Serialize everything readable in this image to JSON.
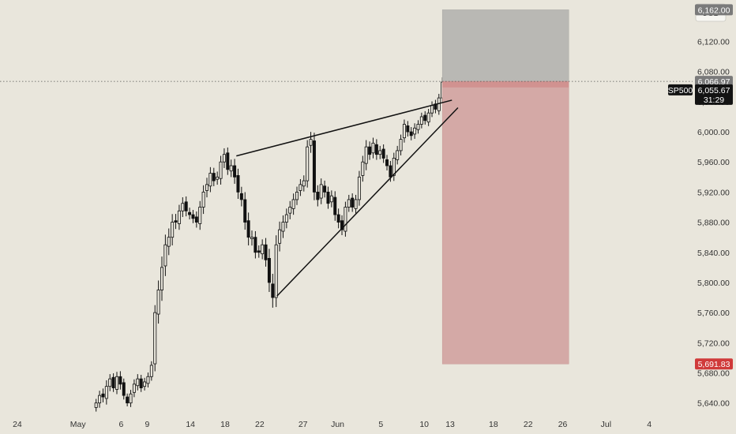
{
  "currency": "USD",
  "chart_data": {
    "type": "candlestick",
    "symbol": "SP500",
    "yaxis": {
      "ticks": [
        "5,640.00",
        "5,680.00",
        "5,720.00",
        "5,760.00",
        "5,800.00",
        "5,840.00",
        "5,880.00",
        "5,920.00",
        "5,960.00",
        "6,000.00",
        "6,040.00",
        "6,080.00",
        "6,120.00"
      ],
      "tick_values": [
        5640,
        5680,
        5720,
        5760,
        5800,
        5840,
        5880,
        5920,
        5960,
        6000,
        6040,
        6080,
        6120
      ],
      "range": [
        5625,
        6175
      ]
    },
    "xaxis": {
      "labels": [
        "24",
        "May",
        "6",
        "9",
        "14",
        "18",
        "22",
        "27",
        "Jun",
        "5",
        "10",
        "13",
        "18",
        "22",
        "26",
        "Jul",
        "4"
      ],
      "label_positions": [
        0,
        7,
        12,
        15,
        20,
        24,
        28,
        33,
        37,
        42,
        47,
        50,
        55,
        59,
        63,
        68,
        73
      ],
      "range": [
        -2,
        78
      ]
    },
    "price_badges": {
      "target": "6,162.00",
      "entry": "6,066.97",
      "current_price": "6,055.67",
      "countdown": "31:29",
      "stop": "5,691.83"
    },
    "levels": {
      "target": 6162.0,
      "entry": 6066.97,
      "current": 6055.67,
      "stop": 5691.83
    },
    "position_zone": {
      "x_start": 49.1,
      "x_end": 63.7
    },
    "wedge_lines": [
      {
        "x1": 25.3,
        "y1": 5968,
        "x2": 50.2,
        "y2": 6042
      },
      {
        "x1": 30.0,
        "y1": 5782,
        "x2": 50.9,
        "y2": 6032
      }
    ],
    "closes": [
      5640,
      5650,
      5648,
      5662,
      5672,
      5660,
      5675,
      5665,
      5650,
      5640,
      5652,
      5665,
      5672,
      5660,
      5668,
      5675,
      5690,
      5760,
      5790,
      5820,
      5850,
      5860,
      5880,
      5880,
      5895,
      5905,
      5895,
      5890,
      5885,
      5880,
      5900,
      5920,
      5930,
      5945,
      5935,
      5940,
      5960,
      5970,
      5950,
      5955,
      5940,
      5920,
      5910,
      5880,
      5860,
      5860,
      5840,
      5840,
      5850,
      5830,
      5800,
      5780,
      5850,
      5870,
      5880,
      5890,
      5900,
      5910,
      5920,
      5930,
      5935,
      5980,
      5990,
      5920,
      5910,
      5930,
      5920,
      5905,
      5915,
      5890,
      5880,
      5870,
      5900,
      5910,
      5900,
      5910,
      5940,
      5960,
      5980,
      5970,
      5985,
      5970,
      5975,
      5965,
      5955,
      5940,
      5965,
      5975,
      5990,
      6010,
      6000,
      5995,
      6005,
      6010,
      6020,
      6015,
      6025,
      6035,
      6030,
      6045,
      6066,
      6055
    ],
    "volatility": [
      12,
      14,
      16,
      18,
      14,
      12,
      14,
      16,
      12,
      10,
      12,
      14,
      14,
      12,
      12,
      12,
      12,
      22,
      28,
      32,
      30,
      26,
      24,
      20,
      18,
      18,
      16,
      14,
      14,
      16,
      18,
      20,
      20,
      18,
      16,
      16,
      18,
      18,
      16,
      18,
      20,
      20,
      20,
      22,
      24,
      20,
      18,
      16,
      16,
      20,
      28,
      30,
      28,
      24,
      20,
      18,
      18,
      18,
      16,
      16,
      16,
      20,
      22,
      24,
      20,
      18,
      16,
      16,
      16,
      18,
      18,
      16,
      16,
      14,
      14,
      14,
      18,
      18,
      20,
      16,
      16,
      16,
      14,
      14,
      14,
      14,
      16,
      14,
      14,
      14,
      14,
      14,
      14,
      12,
      12,
      12,
      12,
      12,
      12,
      12,
      14,
      14
    ]
  }
}
